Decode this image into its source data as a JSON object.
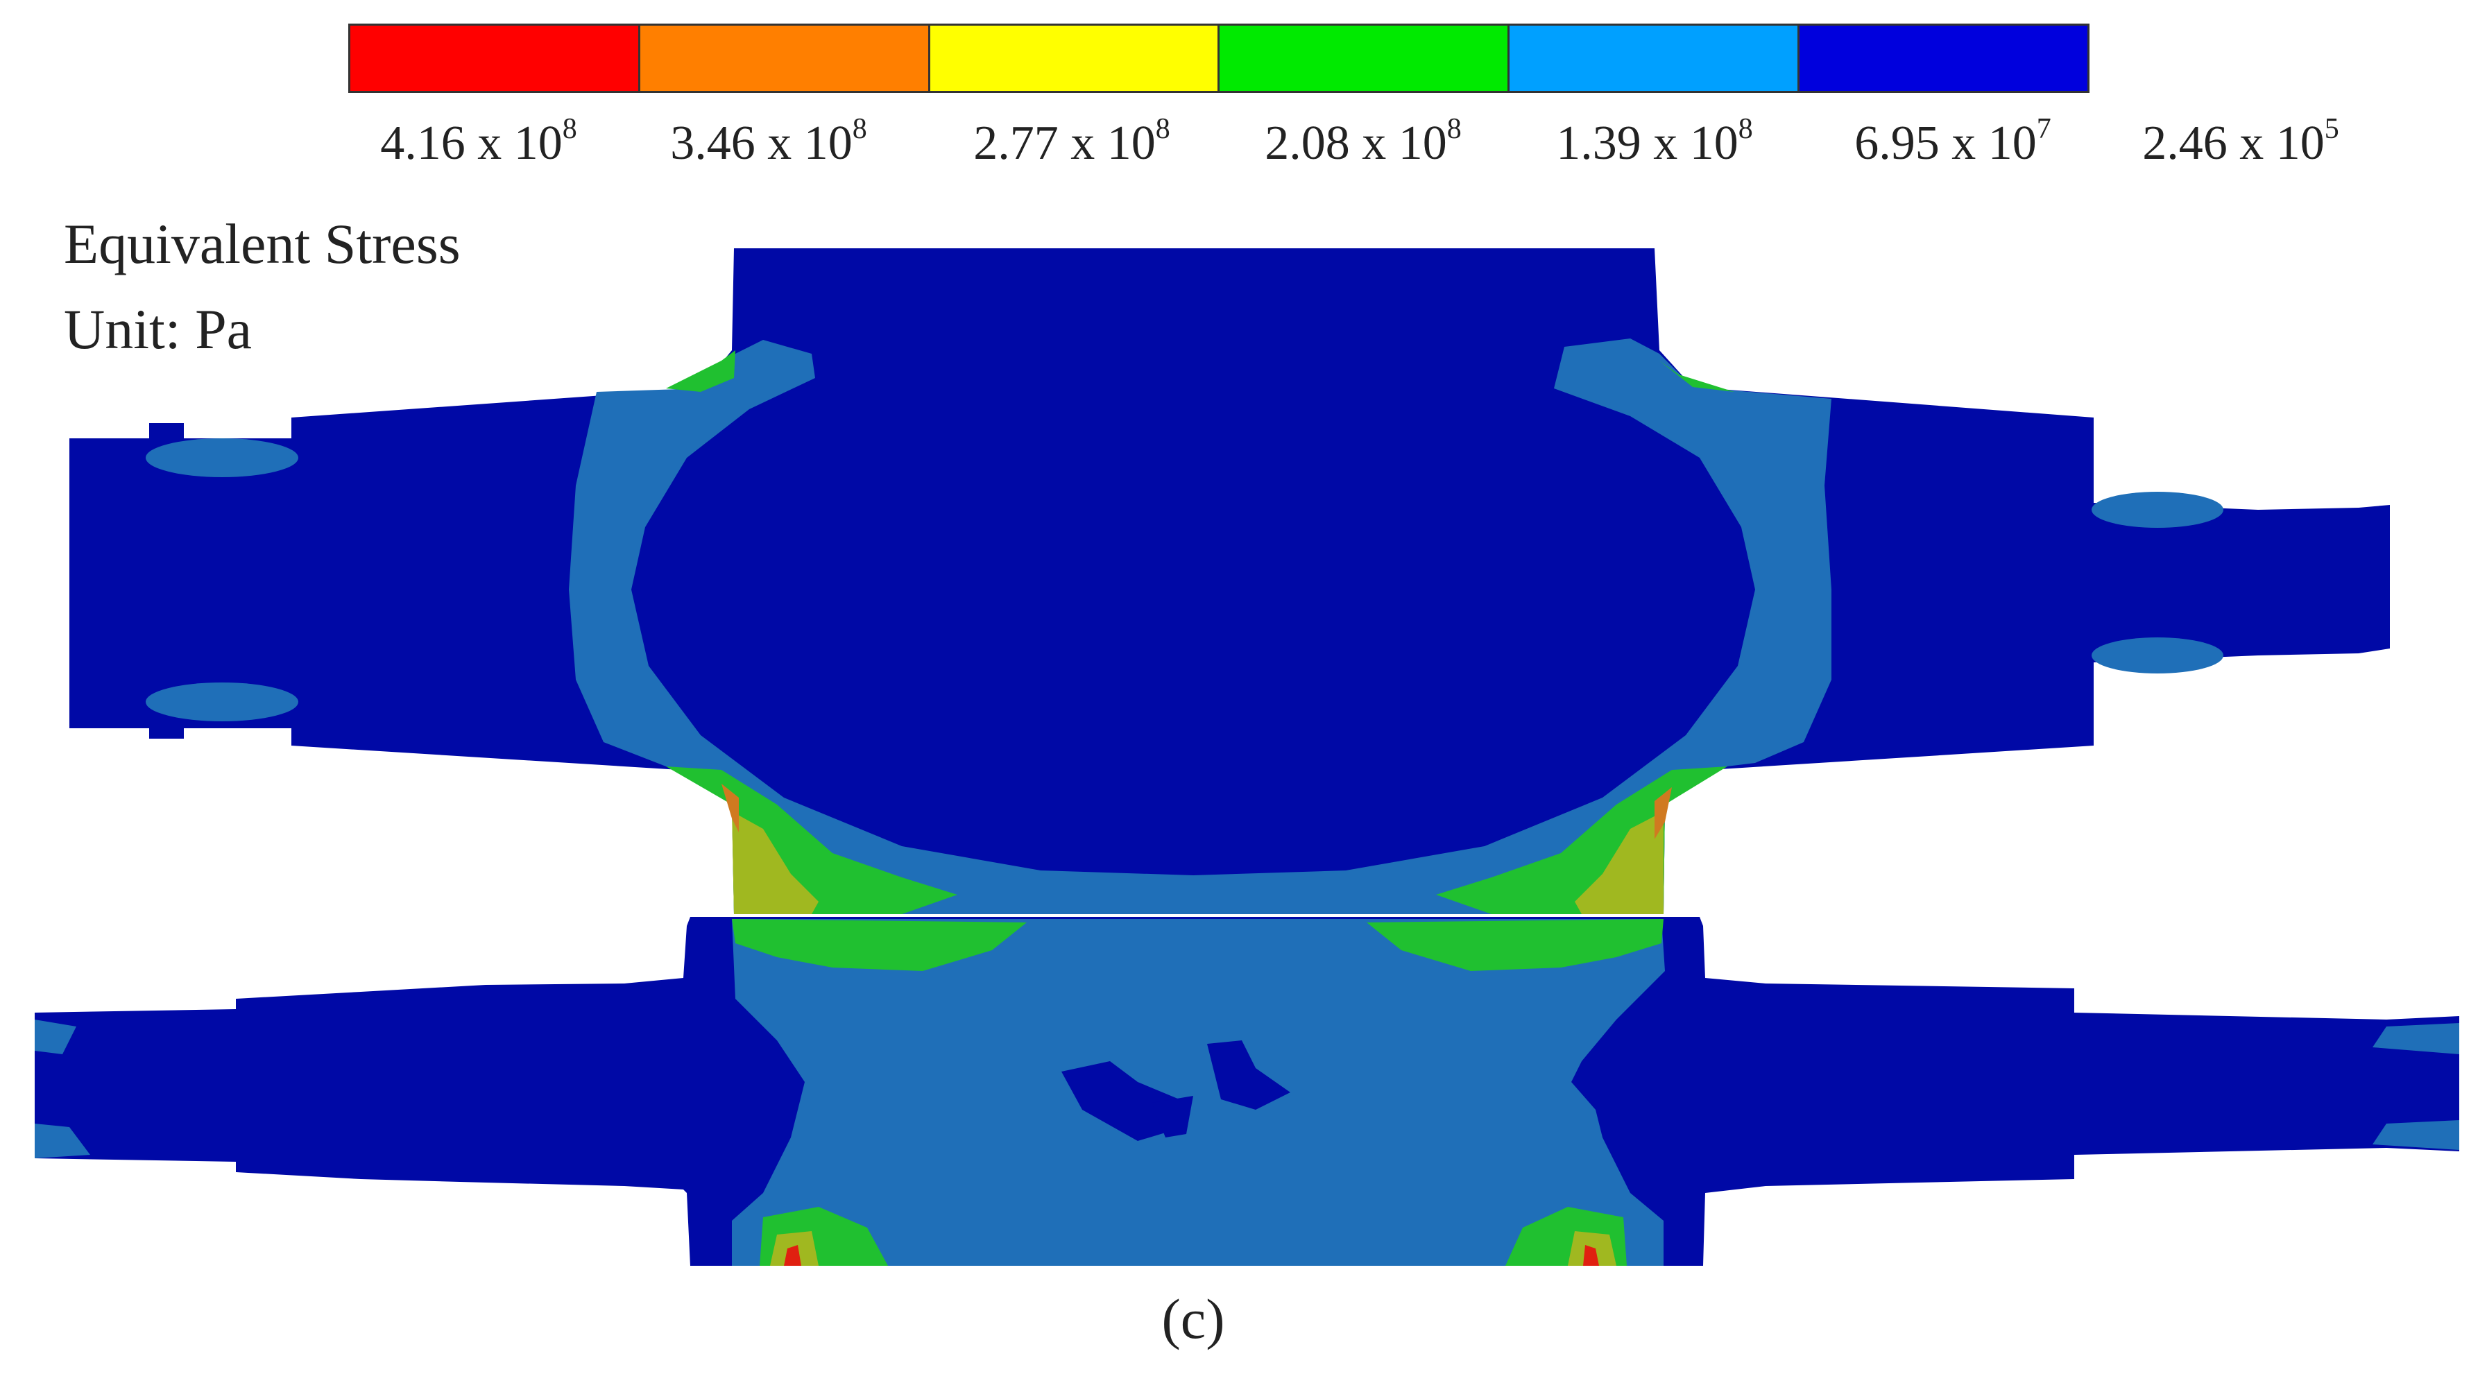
{
  "legend": {
    "colors": [
      "#ff0000",
      "#ff7f00",
      "#ffff00",
      "#00ea00",
      "#00a0ff",
      "#0000dd"
    ],
    "ticks": [
      {
        "mantissa": "4.16 x 10",
        "exp": "8"
      },
      {
        "mantissa": "3.46 x 10",
        "exp": "8"
      },
      {
        "mantissa": "2.77 x 10",
        "exp": "8"
      },
      {
        "mantissa": "2.08 x 10",
        "exp": "8"
      },
      {
        "mantissa": "1.39 x 10",
        "exp": "8"
      },
      {
        "mantissa": "6.95 x 10",
        "exp": "7"
      },
      {
        "mantissa": "2.46 x 10",
        "exp": "5"
      }
    ]
  },
  "title": "Equivalent Stress",
  "unit": "Unit: Pa",
  "caption": "(c)",
  "contour_colors": {
    "background_blue": "#0009a6",
    "mid_blue": "#1f6fb8",
    "green": "#20c030",
    "yellow_green": "#a0b820",
    "orange": "#d07a20",
    "red": "#e02010"
  }
}
